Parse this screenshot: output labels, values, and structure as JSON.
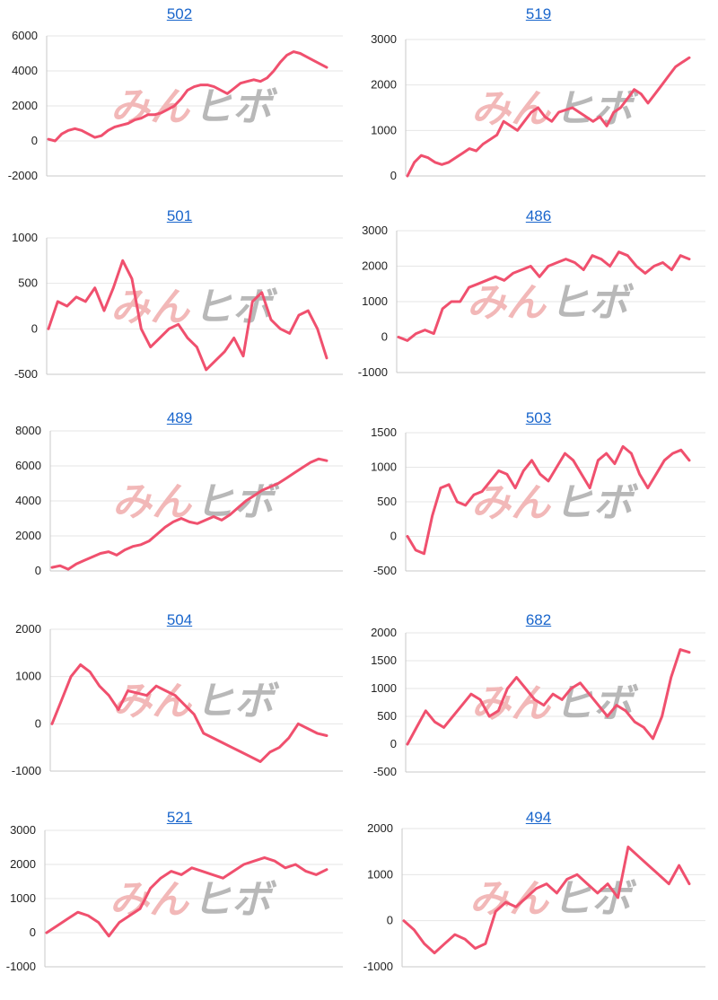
{
  "style": {
    "line_color": "#f0506e",
    "title_color": "#1a66cc"
  },
  "chart_data": [
    {
      "type": "line",
      "title": "502",
      "ylim": [
        -2000,
        6000
      ],
      "yticks": [
        -2000,
        0,
        2000,
        4000,
        6000
      ],
      "values": [
        100,
        0,
        400,
        600,
        700,
        600,
        400,
        200,
        300,
        600,
        800,
        900,
        1000,
        1200,
        1300,
        1500,
        1500,
        1600,
        1800,
        2000,
        2400,
        2900,
        3100,
        3200,
        3200,
        3100,
        2900,
        2700,
        3000,
        3300,
        3400,
        3500,
        3400,
        3600,
        4000,
        4500,
        4900,
        5100,
        5000,
        4800,
        4600,
        4400,
        4200
      ]
    },
    {
      "type": "line",
      "title": "519",
      "ylim": [
        0,
        3000
      ],
      "yticks": [
        0,
        1000,
        2000,
        3000
      ],
      "values": [
        0,
        300,
        450,
        400,
        300,
        250,
        300,
        400,
        500,
        600,
        550,
        700,
        800,
        900,
        1200,
        1100,
        1000,
        1200,
        1400,
        1500,
        1300,
        1200,
        1400,
        1450,
        1500,
        1400,
        1300,
        1200,
        1300,
        1100,
        1400,
        1500,
        1700,
        1900,
        1800,
        1600,
        1800,
        2000,
        2200,
        2400,
        2500,
        2600
      ]
    },
    {
      "type": "line",
      "title": "501",
      "ylim": [
        -500,
        1000
      ],
      "yticks": [
        -500,
        0,
        500,
        1000
      ],
      "values": [
        0,
        300,
        250,
        350,
        300,
        450,
        200,
        450,
        750,
        550,
        0,
        -200,
        -100,
        0,
        50,
        -100,
        -200,
        -450,
        -350,
        -250,
        -100,
        -300,
        300,
        400,
        100,
        0,
        -50,
        150,
        200,
        0,
        -320
      ]
    },
    {
      "type": "line",
      "title": "486",
      "ylim": [
        -1000,
        3000
      ],
      "yticks": [
        -1000,
        0,
        1000,
        2000,
        3000
      ],
      "values": [
        0,
        -100,
        100,
        200,
        100,
        800,
        1000,
        1000,
        1400,
        1500,
        1600,
        1700,
        1600,
        1800,
        1900,
        2000,
        1700,
        2000,
        2100,
        2200,
        2100,
        1900,
        2300,
        2200,
        2000,
        2400,
        2300,
        2000,
        1800,
        2000,
        2100,
        1900,
        2300,
        2200
      ]
    },
    {
      "type": "line",
      "title": "489",
      "ylim": [
        0,
        8000
      ],
      "yticks": [
        0,
        2000,
        4000,
        6000,
        8000
      ],
      "values": [
        200,
        300,
        100,
        400,
        600,
        800,
        1000,
        1100,
        900,
        1200,
        1400,
        1500,
        1700,
        2100,
        2500,
        2800,
        3000,
        2800,
        2700,
        2900,
        3100,
        2900,
        3200,
        3600,
        4000,
        4300,
        4600,
        4800,
        5000,
        5300,
        5600,
        5900,
        6200,
        6400,
        6300
      ]
    },
    {
      "type": "line",
      "title": "503",
      "ylim": [
        -500,
        1500
      ],
      "yticks": [
        -500,
        0,
        500,
        1000,
        1500
      ],
      "values": [
        0,
        -200,
        -250,
        300,
        700,
        750,
        500,
        450,
        600,
        650,
        800,
        950,
        900,
        700,
        950,
        1100,
        900,
        800,
        1000,
        1200,
        1100,
        900,
        700,
        1100,
        1200,
        1050,
        1300,
        1200,
        900,
        700,
        900,
        1100,
        1200,
        1250,
        1100
      ]
    },
    {
      "type": "line",
      "title": "504",
      "ylim": [
        -1000,
        2000
      ],
      "yticks": [
        -1000,
        0,
        1000,
        2000
      ],
      "values": [
        0,
        500,
        1000,
        1250,
        1100,
        800,
        600,
        300,
        700,
        650,
        600,
        800,
        700,
        600,
        400,
        200,
        -200,
        -300,
        -400,
        -500,
        -600,
        -700,
        -800,
        -600,
        -500,
        -300,
        0,
        -100,
        -200,
        -250
      ]
    },
    {
      "type": "line",
      "title": "682",
      "ylim": [
        -500,
        2000
      ],
      "yticks": [
        -500,
        0,
        500,
        1000,
        1500,
        2000
      ],
      "values": [
        0,
        300,
        600,
        400,
        300,
        500,
        700,
        900,
        800,
        500,
        600,
        1000,
        1200,
        1000,
        800,
        700,
        900,
        800,
        1000,
        1100,
        900,
        700,
        500,
        700,
        600,
        400,
        300,
        100,
        500,
        1200,
        1700,
        1650
      ]
    },
    {
      "type": "line",
      "title": "521",
      "ylim": [
        -1000,
        3000
      ],
      "yticks": [
        -1000,
        0,
        1000,
        2000,
        3000
      ],
      "values": [
        0,
        200,
        400,
        600,
        500,
        300,
        -100,
        300,
        500,
        700,
        1300,
        1600,
        1800,
        1700,
        1900,
        1800,
        1700,
        1600,
        1800,
        2000,
        2100,
        2200,
        2100,
        1900,
        2000,
        1800,
        1700,
        1850
      ]
    },
    {
      "type": "line",
      "title": "494",
      "ylim": [
        -1000,
        2000
      ],
      "yticks": [
        -1000,
        0,
        1000,
        2000
      ],
      "values": [
        0,
        -200,
        -500,
        -700,
        -500,
        -300,
        -400,
        -600,
        -500,
        200,
        400,
        300,
        500,
        700,
        800,
        600,
        900,
        1000,
        800,
        600,
        800,
        500,
        1600,
        1400,
        1200,
        1000,
        800,
        1200,
        800
      ]
    }
  ]
}
